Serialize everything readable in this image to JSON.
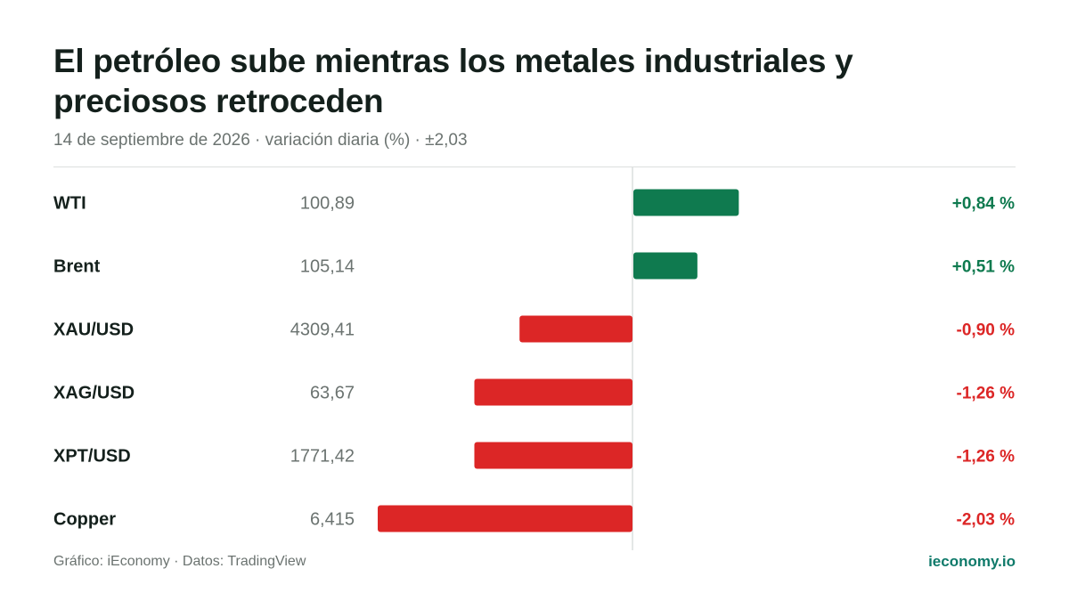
{
  "header": {
    "title": "El petróleo sube mientras los metales industriales y preciosos retroceden",
    "subtitle": "14 de septiembre de 2026 · variación diaria (%) · ±2,03"
  },
  "footer": {
    "credit": "Gráfico: iEconomy · Datos: TradingView",
    "brand": "ieconomy.io"
  },
  "colors": {
    "positive": "#0f7a4f",
    "negative": "#dc2626",
    "axis": "#dcdfde"
  },
  "chart_data": {
    "type": "bar",
    "orientation": "horizontal",
    "categories": [
      "WTI",
      "Brent",
      "XAU/USD",
      "XAG/USD",
      "XPT/USD",
      "Copper"
    ],
    "prices": [
      "100,89",
      "105,14",
      "4309,41",
      "63,67",
      "1771,42",
      "6,415"
    ],
    "values": [
      0.84,
      0.51,
      -0.9,
      -1.26,
      -1.26,
      -2.03
    ],
    "value_labels": [
      "+0,84 %",
      "+0,51 %",
      "-0,90 %",
      "-1,26 %",
      "-1,26 %",
      "-2,03 %"
    ],
    "xlim": [
      -2.03,
      2.03
    ],
    "grid": false
  }
}
